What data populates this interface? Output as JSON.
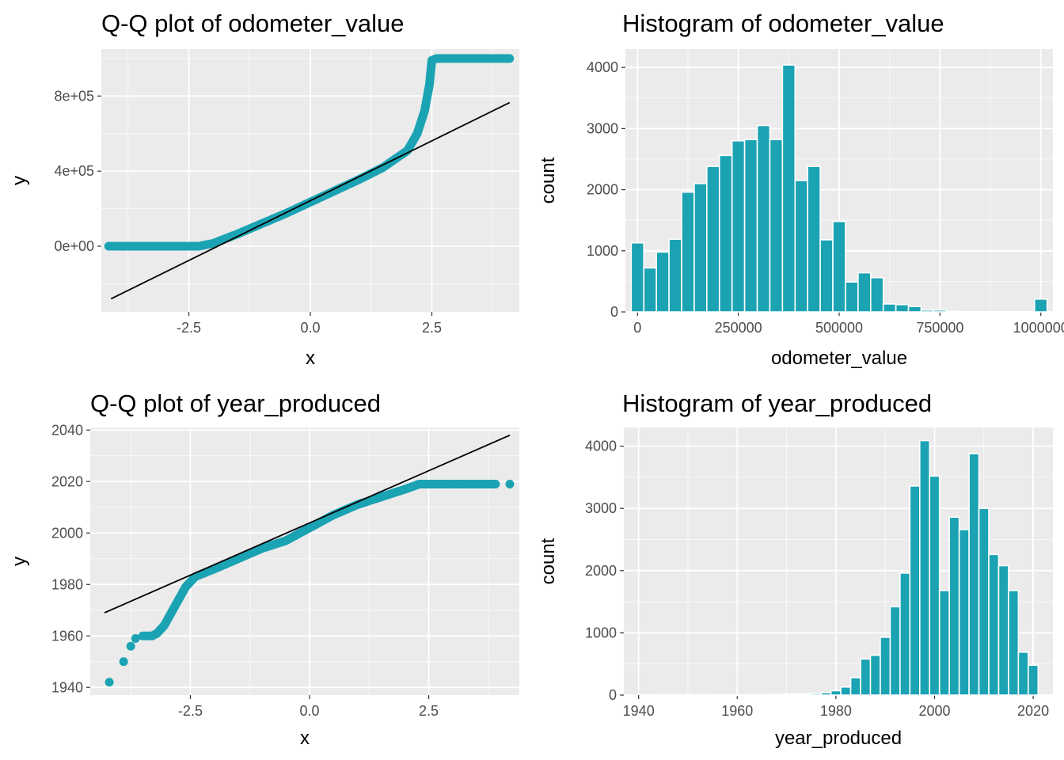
{
  "colors": {
    "point": "#1ba3b3",
    "bar_fill": "#1ba3b3",
    "bar_edge": "#ffffff",
    "panel_bg": "#ebebeb",
    "grid": "#ffffff",
    "ref_line": "#000000"
  },
  "chart_data": [
    {
      "type": "scatter",
      "title": "Q-Q plot of odometer_value",
      "xlabel": "x",
      "ylabel": "y",
      "xlim": [
        -4.3,
        4.3
      ],
      "ylim": [
        -350000,
        1050000
      ],
      "xticks": [
        -2.5,
        0.0,
        2.5
      ],
      "xtick_labels": [
        "-2.5",
        "0.0",
        "2.5"
      ],
      "yticks": [
        0,
        400000,
        800000
      ],
      "ytick_labels": [
        "0e+00",
        "4e+05",
        "8e+05"
      ],
      "grid": true,
      "ref_line": [
        [
          -4.1,
          -280000
        ],
        [
          4.1,
          765000
        ]
      ],
      "sample_curve": [
        [
          -4.1,
          0
        ],
        [
          -3.7,
          0
        ],
        [
          -3.0,
          0
        ],
        [
          -2.3,
          0
        ],
        [
          -2.0,
          15000
        ],
        [
          -1.5,
          65000
        ],
        [
          -1.0,
          120000
        ],
        [
          -0.5,
          175000
        ],
        [
          0.0,
          235000
        ],
        [
          0.5,
          295000
        ],
        [
          1.0,
          355000
        ],
        [
          1.5,
          420000
        ],
        [
          2.0,
          510000
        ],
        [
          2.2,
          600000
        ],
        [
          2.35,
          720000
        ],
        [
          2.45,
          860000
        ],
        [
          2.5,
          990000
        ],
        [
          2.6,
          1000000
        ],
        [
          3.0,
          1000000
        ],
        [
          3.5,
          1000000
        ],
        [
          3.9,
          1000000
        ],
        [
          4.1,
          1000000
        ]
      ]
    },
    {
      "type": "bar",
      "title": "Histogram of odometer_value",
      "xlabel": "odometer_value",
      "ylabel": "count",
      "xlim": [
        -30000,
        1030000
      ],
      "ylim": [
        0,
        4300
      ],
      "xticks": [
        0,
        250000,
        500000,
        750000,
        1000000
      ],
      "xtick_labels": [
        "0",
        "250000",
        "500000",
        "750000",
        "1000000"
      ],
      "yticks": [
        0,
        1000,
        2000,
        3000,
        4000
      ],
      "ytick_labels": [
        "0",
        "1000",
        "2000",
        "3000",
        "4000"
      ],
      "grid": true,
      "bin_width": 31250,
      "x": [
        0,
        31250,
        62500,
        93750,
        125000,
        156250,
        187500,
        218750,
        250000,
        281250,
        312500,
        343750,
        375000,
        406250,
        437500,
        468750,
        500000,
        531250,
        562500,
        593750,
        625000,
        656250,
        687500,
        718750,
        750000,
        781250,
        812500,
        843750,
        875000,
        906250,
        937500,
        968750,
        1000000
      ],
      "values": [
        1130,
        720,
        980,
        1190,
        1960,
        2100,
        2380,
        2560,
        2800,
        2820,
        3050,
        2820,
        4040,
        2150,
        2380,
        1180,
        1480,
        490,
        640,
        560,
        130,
        120,
        90,
        30,
        30,
        10,
        5,
        5,
        5,
        5,
        5,
        5,
        210
      ]
    },
    {
      "type": "scatter",
      "title": "Q-Q plot of year_produced",
      "xlabel": "x",
      "ylabel": "y",
      "xlim": [
        -4.6,
        4.4
      ],
      "ylim": [
        1937,
        2041
      ],
      "xticks": [
        -2.5,
        0.0,
        2.5
      ],
      "xtick_labels": [
        "-2.5",
        "0.0",
        "2.5"
      ],
      "yticks": [
        1940,
        1960,
        1980,
        2000,
        2020,
        2040
      ],
      "ytick_labels": [
        "1940",
        "1960",
        "1980",
        "2000",
        "2020",
        "2040"
      ],
      "grid": true,
      "ref_line": [
        [
          -4.3,
          1969
        ],
        [
          4.2,
          2038
        ]
      ],
      "sample_curve": [
        [
          -3.5,
          1960
        ],
        [
          -3.3,
          1960
        ],
        [
          -3.2,
          1961
        ],
        [
          -3.05,
          1964
        ],
        [
          -2.9,
          1969
        ],
        [
          -2.75,
          1974
        ],
        [
          -2.6,
          1979
        ],
        [
          -2.4,
          1983
        ],
        [
          -2.0,
          1986
        ],
        [
          -1.5,
          1990
        ],
        [
          -1.0,
          1994
        ],
        [
          -0.5,
          1997
        ],
        [
          0.0,
          2002
        ],
        [
          0.5,
          2007
        ],
        [
          1.0,
          2011
        ],
        [
          1.5,
          2014
        ],
        [
          2.0,
          2017
        ],
        [
          2.3,
          2019
        ],
        [
          2.6,
          2019
        ],
        [
          3.0,
          2019
        ],
        [
          3.5,
          2019
        ],
        [
          3.9,
          2019
        ]
      ],
      "sample_points": [
        [
          -4.2,
          1942
        ],
        [
          -3.9,
          1950
        ],
        [
          -3.75,
          1956
        ],
        [
          -3.65,
          1959
        ],
        [
          4.2,
          2019
        ]
      ]
    },
    {
      "type": "bar",
      "title": "Histogram of year_produced",
      "xlabel": "year_produced",
      "ylabel": "count",
      "xlim": [
        1937,
        2024
      ],
      "ylim": [
        0,
        4300
      ],
      "xticks": [
        1940,
        1960,
        1980,
        2000,
        2020
      ],
      "xtick_labels": [
        "1940",
        "1960",
        "1980",
        "2000",
        "2020"
      ],
      "yticks": [
        0,
        1000,
        2000,
        3000,
        4000
      ],
      "ytick_labels": [
        "0",
        "1000",
        "2000",
        "3000",
        "4000"
      ],
      "grid": true,
      "bin_width": 2,
      "x": [
        1942,
        1944,
        1946,
        1948,
        1950,
        1952,
        1954,
        1956,
        1958,
        1960,
        1962,
        1964,
        1966,
        1968,
        1970,
        1972,
        1974,
        1976,
        1978,
        1980,
        1982,
        1984,
        1986,
        1988,
        1990,
        1992,
        1994,
        1996,
        1998,
        2000,
        2002,
        2004,
        2006,
        2008,
        2010,
        2012,
        2014,
        2016,
        2018,
        2020
      ],
      "values": [
        2,
        1,
        1,
        1,
        2,
        1,
        1,
        2,
        2,
        5,
        5,
        8,
        10,
        12,
        15,
        15,
        20,
        25,
        40,
        70,
        130,
        280,
        580,
        640,
        930,
        1420,
        1960,
        3360,
        4090,
        3520,
        1680,
        2860,
        2660,
        3880,
        3000,
        2260,
        2080,
        1680,
        690,
        480
      ]
    }
  ]
}
